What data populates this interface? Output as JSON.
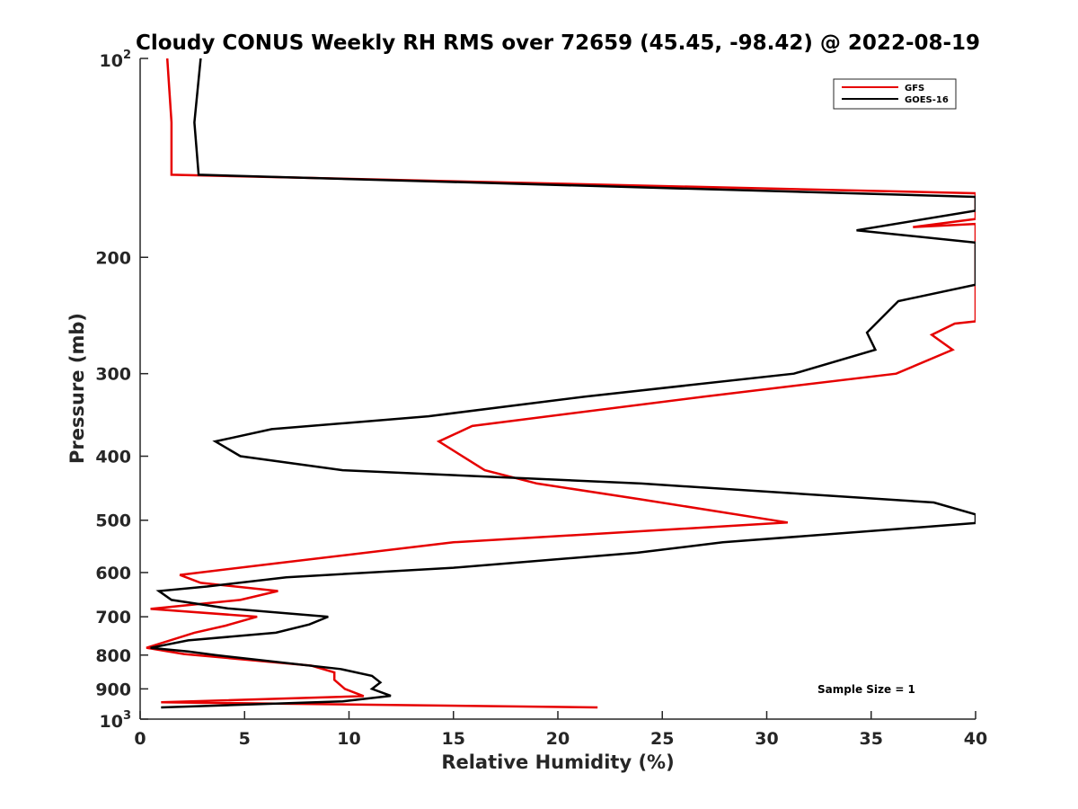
{
  "chart_data": {
    "type": "line",
    "title": "Cloudy CONUS Weekly RH RMS over 72659 (45.45, -98.42) @ 2022-08-19",
    "xlabel": "Relative Humidity (%)",
    "ylabel": "Pressure (mb)",
    "xlim": [
      0,
      40
    ],
    "ylim": [
      100,
      1000
    ],
    "y_scale": "log",
    "y_reversed": true,
    "x_ticks": [
      "0",
      "5",
      "10",
      "15",
      "20",
      "25",
      "30",
      "35",
      "40"
    ],
    "y_ticks": [
      {
        "value": 100,
        "base": "10",
        "exp": "2"
      },
      {
        "value": 200,
        "label": "200"
      },
      {
        "value": 300,
        "label": "300"
      },
      {
        "value": 400,
        "label": "400"
      },
      {
        "value": 500,
        "label": "500"
      },
      {
        "value": 600,
        "label": "600"
      },
      {
        "value": 700,
        "label": "700"
      },
      {
        "value": 800,
        "label": "800"
      },
      {
        "value": 900,
        "label": "900"
      },
      {
        "value": 1000,
        "base": "10",
        "exp": "3"
      }
    ],
    "legend_position": "top-right",
    "annotation": "Sample Size = 1",
    "series": [
      {
        "name": "GFS",
        "color": "#e60000",
        "points": [
          [
            1.3,
            100
          ],
          [
            1.5,
            125
          ],
          [
            1.5,
            150
          ],
          [
            40,
            160
          ],
          [
            40,
            175
          ],
          [
            37,
            180
          ],
          [
            40,
            178
          ],
          [
            40,
            225
          ],
          [
            40,
            250
          ],
          [
            39,
            252
          ],
          [
            37.9,
            262
          ],
          [
            38.9,
            276
          ],
          [
            36.2,
            300
          ],
          [
            27,
            325
          ],
          [
            15.9,
            360
          ],
          [
            14.3,
            380
          ],
          [
            16.5,
            420
          ],
          [
            19,
            440
          ],
          [
            24,
            465
          ],
          [
            31,
            504
          ],
          [
            15,
            540
          ],
          [
            6.5,
            581
          ],
          [
            1.9,
            605
          ],
          [
            2.9,
            622
          ],
          [
            6.6,
            640
          ],
          [
            4.8,
            660
          ],
          [
            0.5,
            681
          ],
          [
            5.6,
            700
          ],
          [
            4.1,
            722
          ],
          [
            2.6,
            740
          ],
          [
            0.3,
            780
          ],
          [
            2.1,
            797
          ],
          [
            8.2,
            830
          ],
          [
            9.3,
            850
          ],
          [
            9.3,
            872
          ],
          [
            9.8,
            900
          ],
          [
            10.7,
            923
          ],
          [
            1,
            943
          ],
          [
            21.9,
            960
          ]
        ]
      },
      {
        "name": "GOES-16",
        "color": "#000000",
        "points": [
          [
            2.9,
            100
          ],
          [
            2.6,
            125
          ],
          [
            2.8,
            150
          ],
          [
            40,
            162
          ],
          [
            40,
            170
          ],
          [
            34.3,
            182
          ],
          [
            40,
            190
          ],
          [
            40,
            220
          ],
          [
            36.3,
            233
          ],
          [
            34.8,
            260
          ],
          [
            35.2,
            276
          ],
          [
            31.3,
            300
          ],
          [
            21.3,
            325
          ],
          [
            13.8,
            348
          ],
          [
            6.3,
            364
          ],
          [
            3.6,
            380
          ],
          [
            4.8,
            400
          ],
          [
            9.7,
            420
          ],
          [
            24,
            440
          ],
          [
            38,
            470
          ],
          [
            40,
            490
          ],
          [
            40,
            505
          ],
          [
            27.9,
            540
          ],
          [
            23.8,
            560
          ],
          [
            15,
            590
          ],
          [
            7,
            610
          ],
          [
            3.2,
            630
          ],
          [
            0.9,
            640
          ],
          [
            1.5,
            660
          ],
          [
            4.2,
            680
          ],
          [
            9,
            700
          ],
          [
            8.1,
            719
          ],
          [
            6.5,
            740
          ],
          [
            2.3,
            760
          ],
          [
            0.5,
            780
          ],
          [
            2.3,
            790
          ],
          [
            3.6,
            800
          ],
          [
            9.6,
            840
          ],
          [
            11.1,
            860
          ],
          [
            11.5,
            880
          ],
          [
            11.1,
            900
          ],
          [
            12,
            922
          ],
          [
            9.7,
            940
          ],
          [
            1,
            960
          ]
        ]
      }
    ]
  }
}
